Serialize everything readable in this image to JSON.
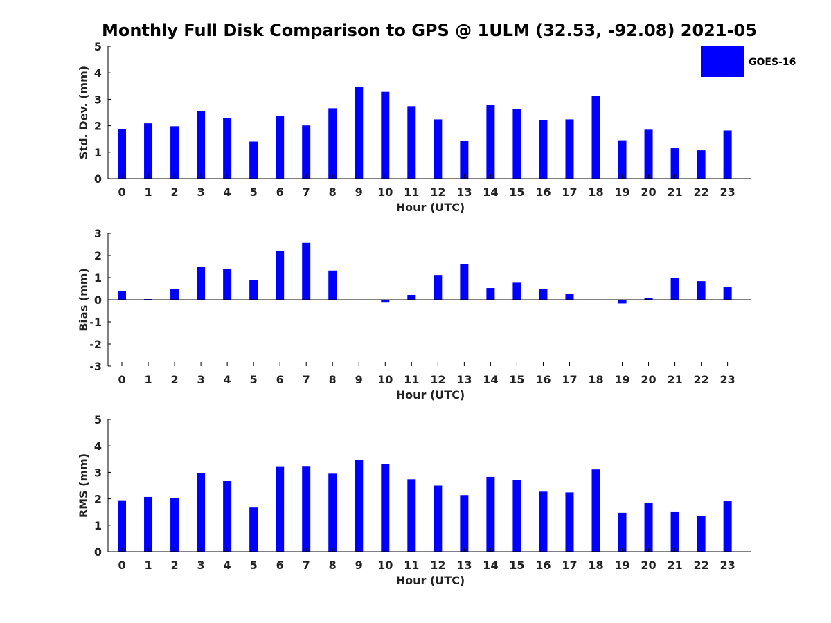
{
  "title": "Monthly Full Disk Comparison to GPS @ 1ULM (32.53, -92.08) 2021-05",
  "legend": {
    "label": "GOES-16",
    "color": "#0000ff",
    "position": "top-right"
  },
  "chart_data": [
    {
      "type": "bar",
      "name": "std_dev",
      "ylabel": "Std. Dev. (mm)",
      "xlabel": "Hour (UTC)",
      "ylim": [
        0,
        5
      ],
      "yticks": [
        "0",
        "1",
        "2",
        "3",
        "4",
        "5"
      ],
      "categories": [
        "0",
        "1",
        "2",
        "3",
        "4",
        "5",
        "6",
        "7",
        "8",
        "9",
        "10",
        "11",
        "12",
        "13",
        "14",
        "15",
        "16",
        "17",
        "18",
        "19",
        "20",
        "21",
        "22",
        "23"
      ],
      "series": [
        {
          "name": "GOES-16",
          "color": "#0000ff",
          "values": [
            1.88,
            2.09,
            1.98,
            2.56,
            2.29,
            1.4,
            2.37,
            2.01,
            2.66,
            3.47,
            3.28,
            2.74,
            2.24,
            1.43,
            2.8,
            2.63,
            2.21,
            2.24,
            3.13,
            1.45,
            1.85,
            1.15,
            1.07,
            1.82
          ]
        }
      ]
    },
    {
      "type": "bar",
      "name": "bias",
      "ylabel": "Bias (mm)",
      "xlabel": "Hour (UTC)",
      "ylim": [
        -3,
        3
      ],
      "yticks": [
        "-3",
        "-2",
        "-1",
        "0",
        "1",
        "2",
        "3"
      ],
      "categories": [
        "0",
        "1",
        "2",
        "3",
        "4",
        "5",
        "6",
        "7",
        "8",
        "9",
        "10",
        "11",
        "12",
        "13",
        "14",
        "15",
        "16",
        "17",
        "18",
        "19",
        "20",
        "21",
        "22",
        "23"
      ],
      "series": [
        {
          "name": "GOES-16",
          "color": "#0000ff",
          "values": [
            0.4,
            0.03,
            0.5,
            1.5,
            1.4,
            0.9,
            2.22,
            2.57,
            1.32,
            0.0,
            -0.1,
            0.22,
            1.12,
            1.62,
            0.53,
            0.77,
            0.5,
            0.28,
            0.0,
            -0.17,
            0.07,
            1.0,
            0.84,
            0.59
          ]
        }
      ]
    },
    {
      "type": "bar",
      "name": "rms",
      "ylabel": "RMS (mm)",
      "xlabel": "Hour (UTC)",
      "ylim": [
        0,
        5
      ],
      "yticks": [
        "0",
        "1",
        "2",
        "3",
        "4",
        "5"
      ],
      "categories": [
        "0",
        "1",
        "2",
        "3",
        "4",
        "5",
        "6",
        "7",
        "8",
        "9",
        "10",
        "11",
        "12",
        "13",
        "14",
        "15",
        "16",
        "17",
        "18",
        "19",
        "20",
        "21",
        "22",
        "23"
      ],
      "series": [
        {
          "name": "GOES-16",
          "color": "#0000ff",
          "values": [
            1.92,
            2.07,
            2.04,
            2.97,
            2.67,
            1.67,
            3.23,
            3.24,
            2.95,
            3.48,
            3.3,
            2.74,
            2.5,
            2.14,
            2.83,
            2.72,
            2.27,
            2.24,
            3.11,
            1.47,
            1.86,
            1.52,
            1.36,
            1.91
          ]
        }
      ]
    }
  ]
}
